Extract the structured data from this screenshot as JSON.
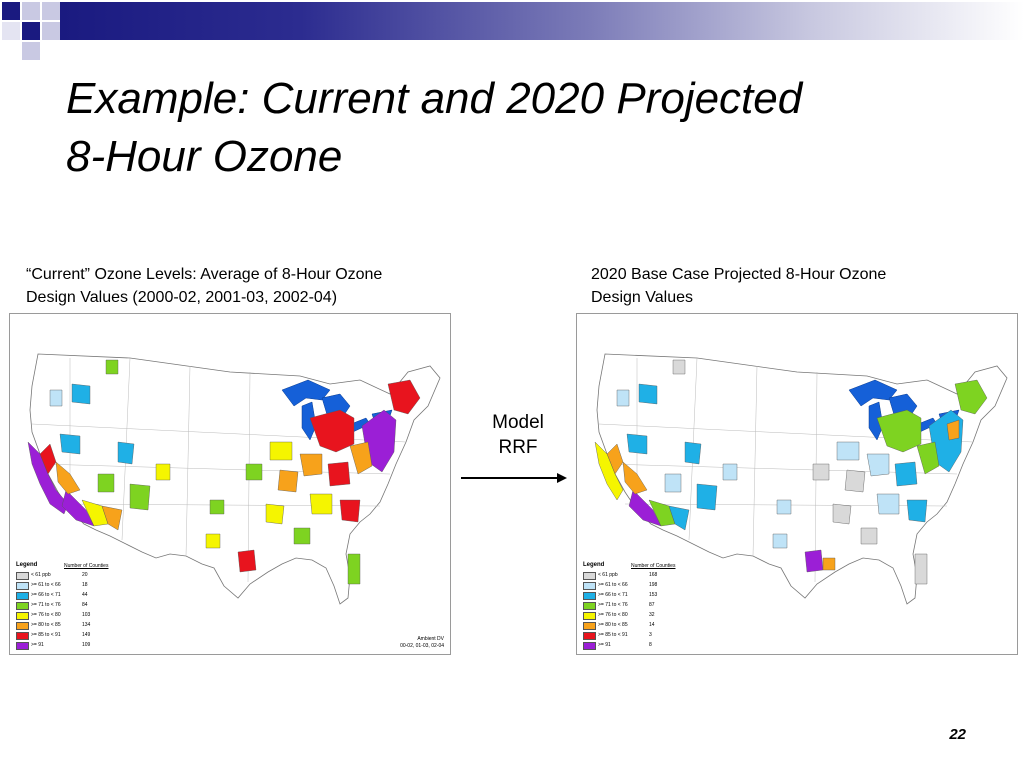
{
  "slide": {
    "title_line1": "Example: Current and 2020 Projected",
    "title_line2": "8-Hour Ozone",
    "page_number": "22"
  },
  "left_panel": {
    "caption_line1": "“Current” Ozone Levels: Average of 8-Hour Ozone",
    "caption_line2": "Design Values (2000-02, 2001-03, 2002-04)",
    "legend_title": "Legend",
    "legend_header": "Number of Counties",
    "legend": [
      {
        "label": "< 61 ppb",
        "count": "20",
        "color": "#d9d9d9"
      },
      {
        "label": ">= 61 to < 66",
        "count": "18",
        "color": "#bfe3f7"
      },
      {
        "label": ">= 66 to < 71",
        "count": "44",
        "color": "#1fb0e6"
      },
      {
        "label": ">= 71 to < 76",
        "count": "84",
        "color": "#7ed321"
      },
      {
        "label": ">= 76 to < 80",
        "count": "103",
        "color": "#f5f500"
      },
      {
        "label": ">= 80 to < 85",
        "count": "134",
        "color": "#f7a21b"
      },
      {
        "label": ">= 85 to < 91",
        "count": "149",
        "color": "#e8141e"
      },
      {
        "label": ">= 91",
        "count": "109",
        "color": "#9b1fd6"
      }
    ],
    "ambient_line1": "Ambient DV",
    "ambient_line2": "00-02, 01-03, 02-04"
  },
  "right_panel": {
    "caption_line1": "2020 Base Case Projected 8-Hour Ozone",
    "caption_line2": "Design Values",
    "legend_title": "Legend",
    "legend_header": "Number of Counties",
    "legend": [
      {
        "label": "< 61 ppb",
        "count": "168",
        "color": "#d9d9d9"
      },
      {
        "label": ">= 61 to < 66",
        "count": "198",
        "color": "#bfe3f7"
      },
      {
        "label": ">= 66 to < 71",
        "count": "153",
        "color": "#1fb0e6"
      },
      {
        "label": ">= 71 to < 76",
        "count": "87",
        "color": "#7ed321"
      },
      {
        "label": ">= 76 to < 80",
        "count": "32",
        "color": "#f5f500"
      },
      {
        "label": ">= 80 to < 85",
        "count": "14",
        "color": "#f7a21b"
      },
      {
        "label": ">= 85 to < 91",
        "count": "3",
        "color": "#e8141e"
      },
      {
        "label": ">= 91",
        "count": "8",
        "color": "#9b1fd6"
      }
    ]
  },
  "transition": {
    "line1": "Model",
    "line2": "RRF"
  },
  "colors": {
    "lake": "#1560d8",
    "band_dark": "#1a1a80"
  }
}
